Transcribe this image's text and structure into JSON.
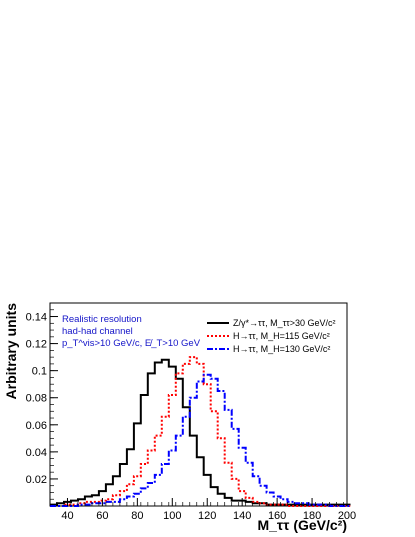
{
  "chart_data": {
    "type": "line",
    "style": "step-histogram",
    "xlabel": "M_ττ (GeV/c²)",
    "ylabel": "Arbitrary units",
    "xlim": [
      30,
      200
    ],
    "ylim": [
      0,
      0.15
    ],
    "x_ticks": [
      40,
      60,
      80,
      100,
      120,
      140,
      160,
      180,
      200
    ],
    "y_ticks": [
      0.02,
      0.04,
      0.06,
      0.08,
      0.1,
      0.12,
      0.14
    ],
    "y_tick_labels": [
      "0.02",
      "0.04",
      "0.06",
      "0.08",
      "0.1",
      "0.12",
      "0.14"
    ],
    "bin_width": 4,
    "bin_edges_start": 30,
    "annotation_lines": [
      "Realistic resolution",
      "had-had channel",
      "p_T^vis>10 GeV/c, E̸_T>10 GeV"
    ],
    "legend_position": "top-right",
    "series": [
      {
        "name": "Z/γ*→ττ, M_ττ>30 GeV/c²",
        "color": "#000000",
        "line": "solid",
        "values": [
          0.001,
          0.002,
          0.003,
          0.004,
          0.005,
          0.007,
          0.008,
          0.011,
          0.016,
          0.022,
          0.031,
          0.042,
          0.061,
          0.082,
          0.098,
          0.106,
          0.108,
          0.103,
          0.094,
          0.073,
          0.052,
          0.036,
          0.023,
          0.014,
          0.009,
          0.006,
          0.004,
          0.004,
          0.003,
          0.002,
          0.002,
          0.001,
          0.001,
          0.001,
          0.001,
          0.001,
          0.001,
          0.001,
          0.001,
          0.001,
          0.001,
          0.001,
          0.001
        ]
      },
      {
        "name": "H→ττ, M_H=115 GeV/c²",
        "color": "#ff0000",
        "line": "dotted",
        "values": [
          0.0,
          0.0,
          0.001,
          0.001,
          0.002,
          0.003,
          0.003,
          0.004,
          0.005,
          0.008,
          0.011,
          0.016,
          0.022,
          0.031,
          0.041,
          0.052,
          0.066,
          0.082,
          0.098,
          0.105,
          0.11,
          0.105,
          0.09,
          0.07,
          0.05,
          0.032,
          0.02,
          0.011,
          0.006,
          0.003,
          0.002,
          0.001,
          0.001,
          0.001,
          0.0,
          0.0,
          0.0,
          0.0,
          0.0,
          0.0,
          0.0,
          0.0,
          0.0
        ]
      },
      {
        "name": "H→ττ, M_H=130 GeV/c²",
        "color": "#0000ff",
        "line": "dash-dot",
        "values": [
          0.0,
          0.0,
          0.0,
          0.0,
          0.001,
          0.001,
          0.002,
          0.002,
          0.003,
          0.003,
          0.005,
          0.007,
          0.009,
          0.013,
          0.017,
          0.023,
          0.031,
          0.041,
          0.052,
          0.066,
          0.08,
          0.092,
          0.097,
          0.094,
          0.085,
          0.071,
          0.057,
          0.043,
          0.032,
          0.022,
          0.015,
          0.01,
          0.007,
          0.005,
          0.003,
          0.002,
          0.002,
          0.001,
          0.001,
          0.001,
          0.0,
          0.0,
          0.0
        ]
      }
    ]
  }
}
